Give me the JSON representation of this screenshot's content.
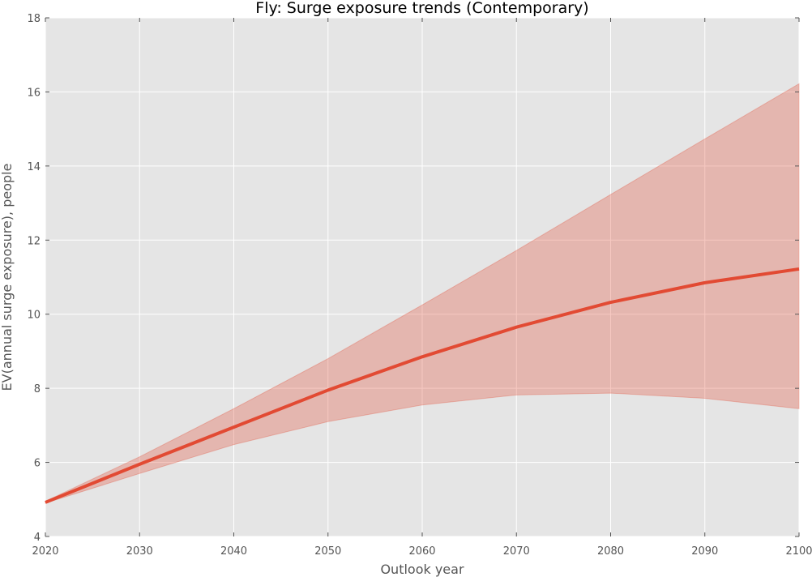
{
  "chart_data": {
    "type": "line",
    "title": "Fly: Surge exposure trends (Contemporary)",
    "xlabel": "Outlook year",
    "ylabel": "EV(annual surge exposure), people",
    "xlim": [
      2020,
      2100
    ],
    "ylim": [
      4,
      18
    ],
    "x_ticks": [
      2020,
      2030,
      2040,
      2050,
      2060,
      2070,
      2080,
      2090,
      2100
    ],
    "y_ticks": [
      4,
      6,
      8,
      10,
      12,
      14,
      16,
      18
    ],
    "x_tick_labels": [
      "2020",
      "2030",
      "2040",
      "2050",
      "2060",
      "2070",
      "2080",
      "2090",
      "2100"
    ],
    "y_tick_labels": [
      "4",
      "6",
      "8",
      "10",
      "12",
      "14",
      "16",
      "18"
    ],
    "grid": true,
    "x": [
      2020,
      2030,
      2040,
      2050,
      2060,
      2070,
      2080,
      2090,
      2100
    ],
    "series": [
      {
        "values": [
          4.92,
          5.95,
          6.95,
          7.95,
          8.85,
          9.65,
          10.32,
          10.85,
          11.22
        ]
      }
    ],
    "band": {
      "lower": [
        4.9,
        5.7,
        6.48,
        7.1,
        7.55,
        7.82,
        7.87,
        7.73,
        7.45
      ],
      "upper": [
        4.95,
        6.15,
        7.45,
        8.8,
        10.25,
        11.72,
        13.23,
        14.73,
        16.22
      ]
    },
    "colors": {
      "line": "#e24a33",
      "band": "#e24a33",
      "background": "#e5e5e5",
      "grid": "#ffffff"
    }
  }
}
